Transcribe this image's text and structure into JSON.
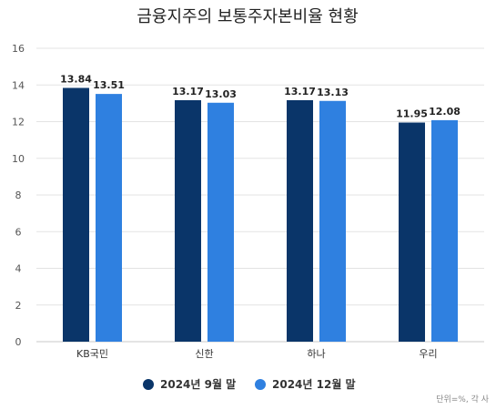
{
  "chart_data": {
    "type": "bar",
    "title": "금융지주의 보통주자본비율 현황",
    "categories": [
      "KB국민",
      "신한",
      "하나",
      "우리"
    ],
    "series": [
      {
        "name": "2024년 9월 말",
        "color": "#0a3569",
        "values": [
          13.84,
          13.17,
          13.17,
          11.95
        ]
      },
      {
        "name": "2024년 12월 말",
        "color": "#2f80e0",
        "values": [
          13.51,
          13.03,
          13.13,
          12.08
        ]
      }
    ],
    "ylim": [
      0,
      16
    ],
    "yticks": [
      0,
      2,
      4,
      6,
      8,
      10,
      12,
      14,
      16
    ],
    "grid": true,
    "legend_position": "bottom",
    "note": "단위=%, 각 사"
  }
}
